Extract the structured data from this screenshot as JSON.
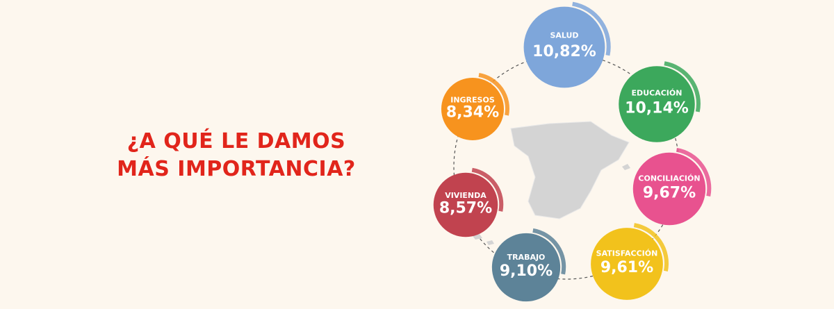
{
  "chart_data": {
    "type": "bubble",
    "title": "¿A QUÉ LE DAMOS MÁS IMPORTANCIA?",
    "categories": [
      "SALUD",
      "EDUCACIÓN",
      "CONCILIACIÓN",
      "SATISFACCIÓN",
      "TRABAJO",
      "VIVIENDA",
      "INGRESOS"
    ],
    "values": [
      10.82,
      10.14,
      9.67,
      9.61,
      9.1,
      8.57,
      8.34
    ],
    "value_labels": [
      "10,82%",
      "10,14%",
      "9,67%",
      "9,61%",
      "9,10%",
      "8,57%",
      "8,34%"
    ],
    "colors": [
      "#7ea6da",
      "#3ca85c",
      "#e8528f",
      "#f2c21c",
      "#5d8398",
      "#c1434f",
      "#f7931e"
    ]
  }
}
